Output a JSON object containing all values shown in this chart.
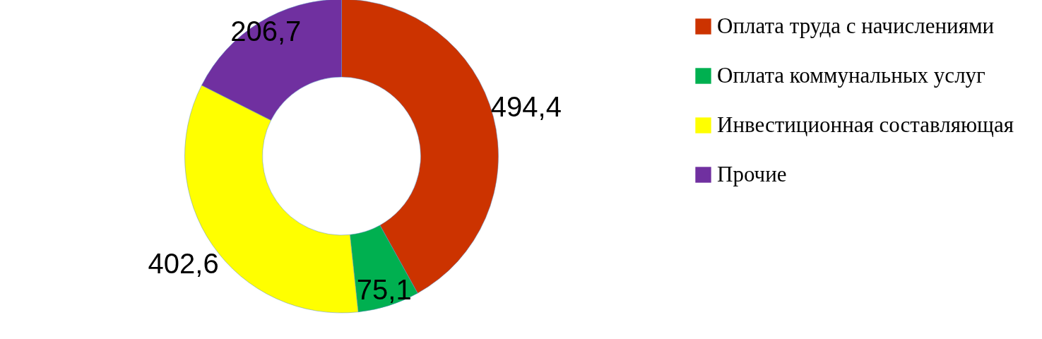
{
  "chart_data": {
    "type": "donut",
    "categories": [
      "Оплата труда с начислениями",
      "Оплата коммунальных услуг",
      "Инвестиционная составляющая",
      "Прочие"
    ],
    "values": [
      494.4,
      75.1,
      402.6,
      206.7
    ],
    "colors": [
      "#cc3300",
      "#00b050",
      "#ffff00",
      "#7030a0"
    ],
    "value_labels": [
      "494,4",
      "75,1",
      "402,6",
      "206,7"
    ],
    "legend": "right"
  }
}
